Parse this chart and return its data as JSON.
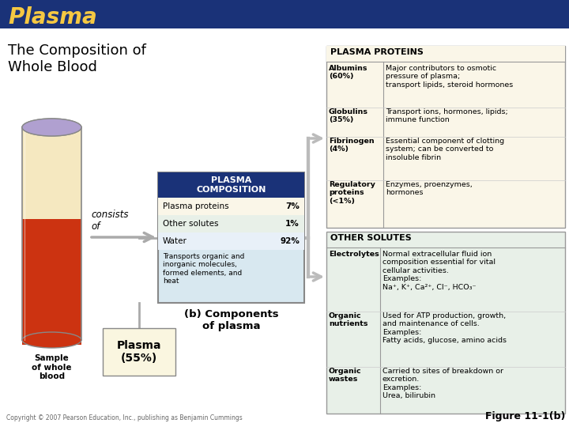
{
  "title": "Plasma",
  "subtitle": "The Composition of\nWhole Blood",
  "header_bg": "#1a3278",
  "header_text_color": "#f5c842",
  "body_bg": "#ffffff",
  "figure_label": "Figure 11-1(b)",
  "copyright": "Copyright © 2007 Pearson Education, Inc., publishing as Benjamin Cummings",
  "plasma_composition_title": "PLASMA\nCOMPOSITION",
  "plasma_composition_rows": [
    [
      "Plasma proteins",
      "7%",
      "#faf6e8"
    ],
    [
      "Other solutes",
      "1%",
      "#e8f0e8"
    ],
    [
      "Water",
      "92%",
      "#e8f0f8"
    ]
  ],
  "plasma_composition_note": "Transports organic and\ninorganic molecules,\nformed elements, and\nheat",
  "plasma_label": "Plasma\n(55%)",
  "plasma_proteins_title": "PLASMA PROTEINS",
  "plasma_proteins_rows": [
    [
      "Albumins\n(60%)",
      "Major contributors to osmotic\npressure of plasma;\ntransport lipids, steroid hormones"
    ],
    [
      "Globulins\n(35%)",
      "Transport ions, hormones, lipids;\nimmune function"
    ],
    [
      "Fibrinogen\n(4%)",
      "Essential component of clotting\nsystem; can be converted to\ninsoluble fibrin"
    ],
    [
      "Regulatory\nproteins\n(<1%)",
      "Enzymes, proenzymes,\nhormones"
    ]
  ],
  "other_solutes_title": "OTHER SOLUTES",
  "other_solutes_rows": [
    [
      "Electrolytes",
      "Normal extracellular fluid ion\ncomposition essential for vital\ncellular activities.\nExamples:\nNa⁺, K⁺, Ca²⁺, Cl⁻, HCO₃⁻"
    ],
    [
      "Organic\nnutrients",
      "Used for ATP production, growth,\nand maintenance of cells.\nExamples:\nFatty acids, glucose, amino acids"
    ],
    [
      "Organic\nwastes",
      "Carried to sites of breakdown or\nexcretion.\nExamples:\nUrea, bilirubin"
    ]
  ],
  "sample_label": "Sample\nof whole\nblood",
  "consists_of": "consists\nof",
  "components_label": "(b) Components\nof plasma"
}
